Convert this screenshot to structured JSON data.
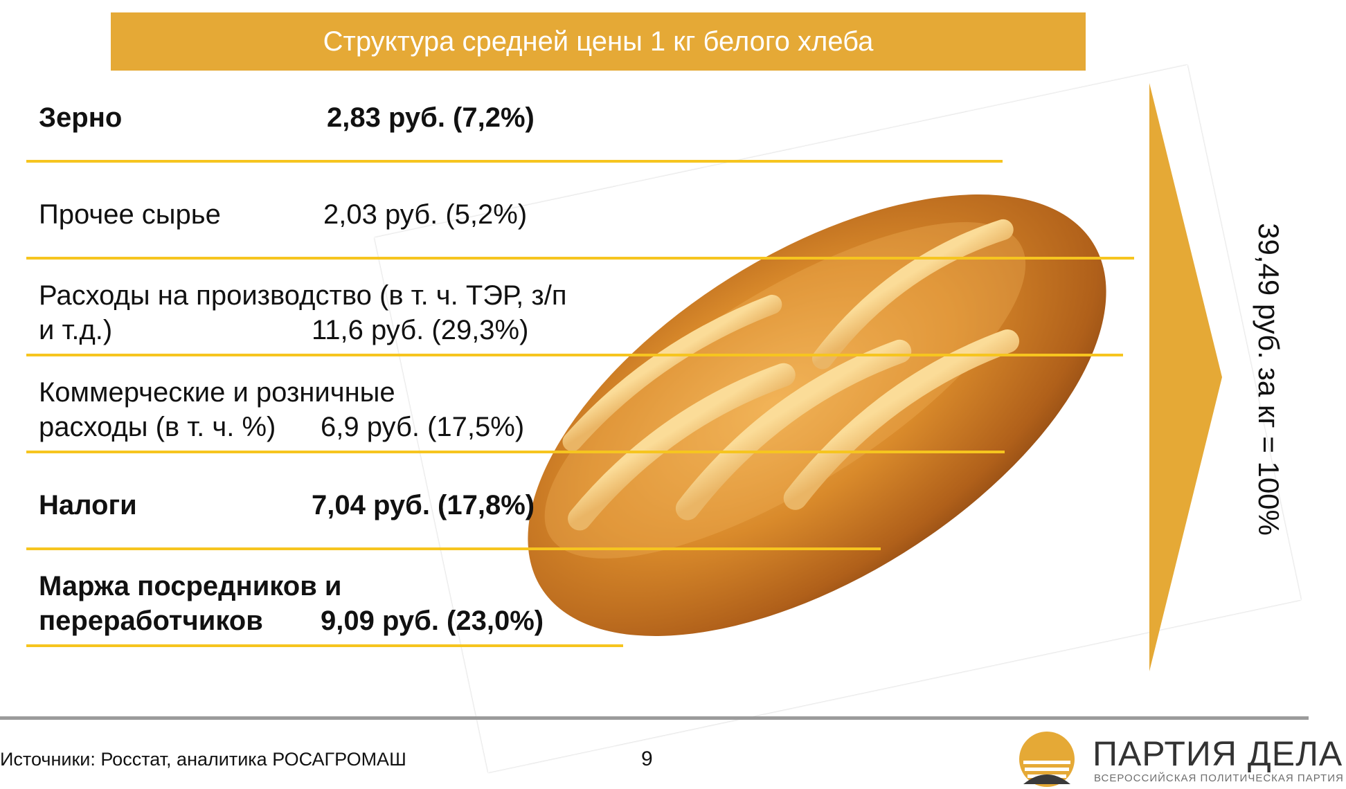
{
  "header": {
    "title": "Структура средней цены 1 кг белого хлеба"
  },
  "chart_data": {
    "type": "table",
    "title": "Структура средней цены 1 кг белого хлеба",
    "unit": "руб.",
    "rows": [
      {
        "label": "Зерно",
        "value_text": "2,83 руб. (7,2%)",
        "value": 2.83,
        "percent": 7.2,
        "bold": true
      },
      {
        "label": "Прочее сырье",
        "value_text": "2,03 руб. (5,2%)",
        "value": 2.03,
        "percent": 5.2,
        "bold": false
      },
      {
        "label": "Расходы на производство (в т. ч. ТЭР, з/п\nи т.д.)",
        "value_text": "11,6 руб. (29,3%)",
        "value": 11.6,
        "percent": 29.3,
        "bold": false
      },
      {
        "label": "Коммерческие и розничные\nрасходы (в т. ч. %)",
        "value_text": "6,9 руб. (17,5%)",
        "value": 6.9,
        "percent": 17.5,
        "bold": false
      },
      {
        "label": "Налоги",
        "value_text": "7,04 руб. (17,8%)",
        "value": 7.04,
        "percent": 17.8,
        "bold": true
      },
      {
        "label": "Маржа посредников и\nпереработчиков",
        "value_text": "9,09 руб. (23,0%)",
        "value": 9.09,
        "percent": 23.0,
        "bold": true
      }
    ],
    "total": {
      "text": "39,49 руб. за кг = 100%",
      "value": 39.49,
      "percent": 100
    }
  },
  "footer": {
    "source": "Источники: Росстат, аналитика РОСАГРОМАШ",
    "page_number": "9",
    "logo_name": "ПАРТИЯ ДЕЛА",
    "logo_subtitle": "ВСЕРОССИЙСКАЯ ПОЛИТИЧЕСКАЯ ПАРТИЯ"
  },
  "colors": {
    "accent": "#e5a936",
    "rule": "#f6c51f",
    "footer_rule": "#9b9b9b"
  }
}
